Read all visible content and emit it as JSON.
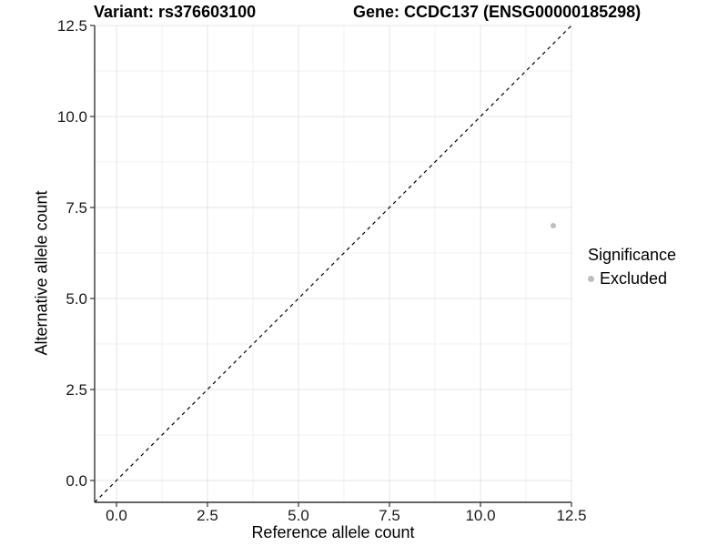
{
  "chart_data": {
    "type": "scatter",
    "title_left": "Variant: rs376603100",
    "title_right": "Gene: CCDC137 (ENSG00000185298)",
    "xlabel": "Reference allele count",
    "ylabel": "Alternative allele count",
    "xlim": [
      -0.6,
      12.5
    ],
    "ylim": [
      -0.6,
      12.5
    ],
    "x_ticks": [
      0,
      2.5,
      5,
      7.5,
      10,
      12.5
    ],
    "y_ticks": [
      0,
      2.5,
      5,
      7.5,
      10,
      12.5
    ],
    "tick_label_format": "one_decimal",
    "grid": {
      "major": true,
      "minor": true
    },
    "series": [
      {
        "name": "Excluded",
        "color": "#bebebe",
        "points": [
          {
            "x": 12,
            "y": 7
          }
        ]
      }
    ],
    "reference_line": {
      "kind": "identity_y_equals_x",
      "style": "dashed",
      "color": "#000000"
    },
    "legend": {
      "title": "Significance",
      "position": "right",
      "entries": [
        {
          "label": "Excluded",
          "color": "#bebebe"
        }
      ]
    },
    "colors": {
      "background": "#ffffff",
      "axis_line": "#333333",
      "tick_label": "#1a1a1a",
      "grid_major": "#e4e4e4",
      "grid_minor": "#f1f1f1"
    }
  }
}
